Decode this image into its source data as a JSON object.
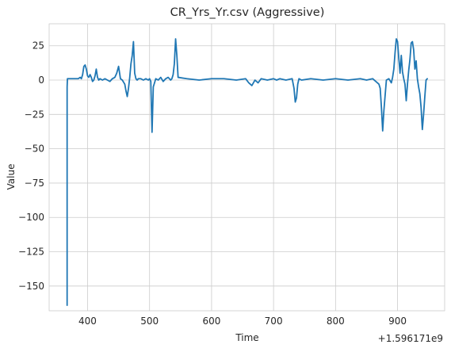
{
  "chart_data": {
    "type": "line",
    "title": "CR_Yrs_Yr.csv (Aggressive)",
    "xlabel": "Time",
    "ylabel": "Value",
    "x_offset_label": "+1.596171e9",
    "xlim": [
      338,
      976
    ],
    "ylim": [
      -168,
      41
    ],
    "xticks": [
      400,
      500,
      600,
      700,
      800,
      900
    ],
    "yticks": [
      25,
      0,
      -25,
      -50,
      -75,
      -100,
      -125,
      -150
    ],
    "grid": true,
    "color": "#1f77b4",
    "series": [
      {
        "x": [
          367,
          367,
          367.5,
          368,
          380,
          385,
          388,
          390,
          392,
          394,
          396,
          398,
          400,
          402,
          404,
          406,
          408,
          410,
          412,
          414,
          416,
          418,
          420,
          424,
          428,
          432,
          436,
          440,
          444,
          447,
          450,
          453,
          456,
          460,
          462,
          464,
          466,
          468,
          470,
          472,
          474,
          476,
          478,
          480,
          482,
          486,
          490,
          494,
          498,
          500,
          502,
          503,
          504,
          506,
          510,
          514,
          518,
          522,
          526,
          530,
          534,
          536,
          538,
          540,
          542,
          544,
          546,
          560,
          580,
          600,
          620,
          640,
          655,
          660,
          665,
          670,
          675,
          680,
          690,
          700,
          705,
          710,
          720,
          730,
          733,
          735,
          737,
          739,
          741,
          745,
          760,
          780,
          800,
          820,
          840,
          850,
          860,
          870,
          872,
          874,
          876,
          878,
          882,
          886,
          890,
          892,
          894,
          896,
          898,
          900,
          902,
          904,
          906,
          908,
          910,
          912,
          914,
          916,
          918,
          920,
          922,
          924,
          926,
          928,
          930,
          932,
          934,
          936,
          938,
          940,
          942,
          944,
          946,
          948
        ],
        "y": [
          -164,
          -5,
          1,
          1,
          1,
          1,
          2,
          1,
          4,
          10,
          11,
          8,
          3,
          2,
          4,
          2,
          -1,
          0,
          3,
          8,
          2,
          0,
          1,
          0,
          1,
          0,
          -1,
          1,
          2,
          5,
          10,
          1,
          0,
          -3,
          -8,
          -12,
          -6,
          2,
          12,
          18,
          28,
          5,
          1,
          0,
          1,
          1,
          0,
          1,
          0,
          1,
          -1,
          -20,
          -38,
          -5,
          1,
          0,
          2,
          -1,
          1,
          2,
          0,
          1,
          4,
          12,
          30,
          18,
          2,
          1,
          0,
          1,
          1,
          0,
          1,
          -2,
          -4,
          0,
          -2,
          1,
          0,
          1,
          0,
          1,
          0,
          1,
          -6,
          -16,
          -13,
          -3,
          1,
          0,
          1,
          0,
          1,
          0,
          1,
          0,
          1,
          -3,
          -6,
          -20,
          -37,
          -22,
          0,
          1,
          -2,
          2,
          8,
          20,
          30,
          28,
          16,
          5,
          18,
          6,
          1,
          -3,
          -15,
          -3,
          7,
          15,
          27,
          28,
          22,
          8,
          14,
          1,
          -5,
          -10,
          -20,
          -36,
          -25,
          -12,
          0,
          1
        ]
      }
    ]
  }
}
